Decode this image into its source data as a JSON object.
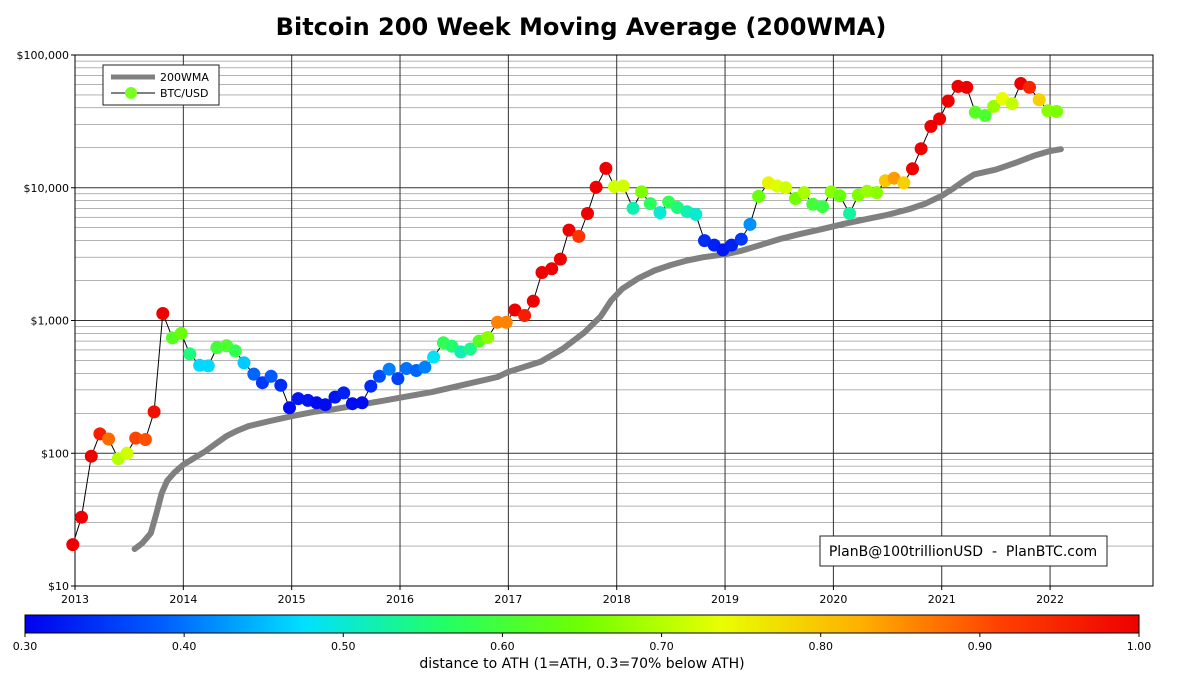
{
  "chart_data": {
    "type": "scatter",
    "title": "Bitcoin 200 Week Moving Average (200WMA)",
    "y_scale": "log",
    "ylim": [
      10,
      100000
    ],
    "xlim": [
      2013.0,
      2022.95
    ],
    "y_ticks": [
      {
        "value": 10,
        "label": "$10"
      },
      {
        "value": 100,
        "label": "$100"
      },
      {
        "value": 1000,
        "label": "$1,000"
      },
      {
        "value": 10000,
        "label": "$10,000"
      },
      {
        "value": 100000,
        "label": "$100,000"
      }
    ],
    "x_ticks": [
      {
        "value": 2013,
        "label": "2013"
      },
      {
        "value": 2014,
        "label": "2014"
      },
      {
        "value": 2015,
        "label": "2015"
      },
      {
        "value": 2016,
        "label": "2016"
      },
      {
        "value": 2017,
        "label": "2017"
      },
      {
        "value": 2018,
        "label": "2018"
      },
      {
        "value": 2019,
        "label": "2019"
      },
      {
        "value": 2020,
        "label": "2020"
      },
      {
        "value": 2021,
        "label": "2021"
      },
      {
        "value": 2022,
        "label": "2022"
      }
    ],
    "grid": true,
    "legend": {
      "position": "top-left",
      "entries": [
        {
          "label": "200WMA",
          "color": "#808080"
        },
        {
          "label": "BTC/USD",
          "color": "#77ff22"
        }
      ]
    },
    "annotation": "PlanB@100trillionUSD  -  PlanBTC.com",
    "colorbar": {
      "label": "distance to ATH (1=ATH, 0.3=70% below ATH)",
      "min": 0.3,
      "max": 1.0,
      "ticks": [
        "0.30",
        "0.40",
        "0.50",
        "0.60",
        "0.70",
        "0.80",
        "0.90",
        "1.00"
      ]
    },
    "series": [
      {
        "name": "200WMA",
        "color": "#808080",
        "x": [
          2013.55,
          2013.62,
          2013.7,
          2013.75,
          2013.8,
          2013.85,
          2013.92,
          2014.0,
          2014.1,
          2014.2,
          2014.3,
          2014.4,
          2014.5,
          2014.6,
          2014.8,
          2015.0,
          2015.2,
          2015.4,
          2015.6,
          2015.8,
          2016.0,
          2016.3,
          2016.6,
          2016.9,
          2017.0,
          2017.3,
          2017.5,
          2017.7,
          2017.85,
          2017.95,
          2018.05,
          2018.2,
          2018.35,
          2018.5,
          2018.65,
          2018.8,
          2019.0,
          2019.15,
          2019.3,
          2019.5,
          2019.7,
          2019.9,
          2020.1,
          2020.3,
          2020.5,
          2020.7,
          2020.85,
          2021.0,
          2021.1,
          2021.2,
          2021.3,
          2021.5,
          2021.7,
          2021.85,
          2022.0,
          2022.1
        ],
        "values": [
          19,
          21,
          25,
          35,
          50,
          62,
          72,
          82,
          92,
          103,
          118,
          135,
          148,
          160,
          175,
          190,
          205,
          215,
          230,
          245,
          262,
          290,
          330,
          375,
          410,
          490,
          610,
          810,
          1070,
          1420,
          1730,
          2080,
          2380,
          2620,
          2830,
          3000,
          3150,
          3350,
          3650,
          4100,
          4500,
          4900,
          5350,
          5800,
          6250,
          6900,
          7600,
          8700,
          9800,
          11200,
          12600,
          13700,
          15600,
          17400,
          18900,
          19500
        ]
      },
      {
        "name": "BTC/USD",
        "x": [
          2012.98,
          2013.06,
          2013.15,
          2013.23,
          2013.31,
          2013.4,
          2013.48,
          2013.56,
          2013.65,
          2013.73,
          2013.81,
          2013.9,
          2013.98,
          2014.06,
          2014.15,
          2014.23,
          2014.31,
          2014.4,
          2014.48,
          2014.56,
          2014.65,
          2014.73,
          2014.81,
          2014.9,
          2014.98,
          2015.06,
          2015.15,
          2015.23,
          2015.31,
          2015.4,
          2015.48,
          2015.56,
          2015.65,
          2015.73,
          2015.81,
          2015.9,
          2015.98,
          2016.06,
          2016.15,
          2016.23,
          2016.31,
          2016.4,
          2016.48,
          2016.56,
          2016.65,
          2016.73,
          2016.81,
          2016.9,
          2016.98,
          2017.06,
          2017.15,
          2017.23,
          2017.31,
          2017.4,
          2017.48,
          2017.56,
          2017.65,
          2017.73,
          2017.81,
          2017.9,
          2017.98,
          2018.06,
          2018.15,
          2018.23,
          2018.31,
          2018.4,
          2018.48,
          2018.56,
          2018.65,
          2018.73,
          2018.81,
          2018.9,
          2018.98,
          2019.06,
          2019.15,
          2019.23,
          2019.31,
          2019.4,
          2019.48,
          2019.56,
          2019.65,
          2019.73,
          2019.81,
          2019.9,
          2019.98,
          2020.06,
          2020.15,
          2020.23,
          2020.31,
          2020.4,
          2020.48,
          2020.56,
          2020.65,
          2020.73,
          2020.81,
          2020.9,
          2020.98,
          2021.06,
          2021.15,
          2021.23,
          2021.31,
          2021.4,
          2021.48,
          2021.56,
          2021.65,
          2021.73,
          2021.81,
          2021.9,
          2021.98,
          2022.06
        ],
        "values": [
          20.5,
          33,
          95,
          140,
          128,
          91,
          100,
          130,
          127,
          205,
          1130,
          740,
          800,
          560,
          460,
          455,
          625,
          645,
          590,
          480,
          395,
          340,
          380,
          325,
          220,
          258,
          250,
          240,
          232,
          265,
          285,
          236,
          240,
          320,
          380,
          430,
          365,
          435,
          420,
          445,
          530,
          680,
          640,
          580,
          610,
          700,
          745,
          970,
          970,
          1200,
          1090,
          1400,
          2300,
          2450,
          2900,
          4800,
          4300,
          6400,
          10100,
          14000,
          10200,
          10300,
          7000,
          9300,
          7600,
          6500,
          7800,
          7100,
          6600,
          6300,
          4000,
          3700,
          3400,
          3700,
          4100,
          5300,
          8600,
          10900,
          10300,
          10000,
          8300,
          9200,
          7500,
          7200,
          9300,
          8700,
          6400,
          8800,
          9400,
          9200,
          11300,
          11800,
          10900,
          13900,
          19700,
          29000,
          33000,
          45000,
          58000,
          57000,
          37000,
          35000,
          41000,
          47000,
          43000,
          61000,
          57000,
          46000,
          38000,
          37500
        ],
        "ath_distance": [
          1.0,
          1.0,
          1.0,
          0.96,
          0.88,
          0.7,
          0.72,
          0.91,
          0.9,
          0.98,
          1.0,
          0.62,
          0.64,
          0.55,
          0.47,
          0.47,
          0.6,
          0.61,
          0.58,
          0.46,
          0.39,
          0.35,
          0.38,
          0.34,
          0.31,
          0.32,
          0.32,
          0.31,
          0.31,
          0.32,
          0.33,
          0.31,
          0.31,
          0.34,
          0.37,
          0.41,
          0.36,
          0.4,
          0.39,
          0.41,
          0.48,
          0.58,
          0.56,
          0.52,
          0.54,
          0.62,
          0.67,
          0.86,
          0.86,
          1.0,
          0.96,
          1.0,
          1.0,
          1.0,
          1.0,
          1.0,
          0.93,
          1.0,
          1.0,
          1.0,
          0.72,
          0.72,
          0.52,
          0.66,
          0.57,
          0.5,
          0.58,
          0.55,
          0.52,
          0.5,
          0.34,
          0.33,
          0.32,
          0.33,
          0.35,
          0.42,
          0.64,
          0.75,
          0.73,
          0.72,
          0.65,
          0.69,
          0.6,
          0.59,
          0.67,
          0.64,
          0.53,
          0.66,
          0.68,
          0.67,
          0.8,
          0.84,
          0.79,
          1.0,
          1.0,
          1.0,
          1.0,
          1.0,
          1.0,
          1.0,
          0.62,
          0.61,
          0.68,
          0.74,
          0.71,
          1.0,
          0.95,
          0.79,
          0.67,
          0.66
        ]
      }
    ]
  }
}
